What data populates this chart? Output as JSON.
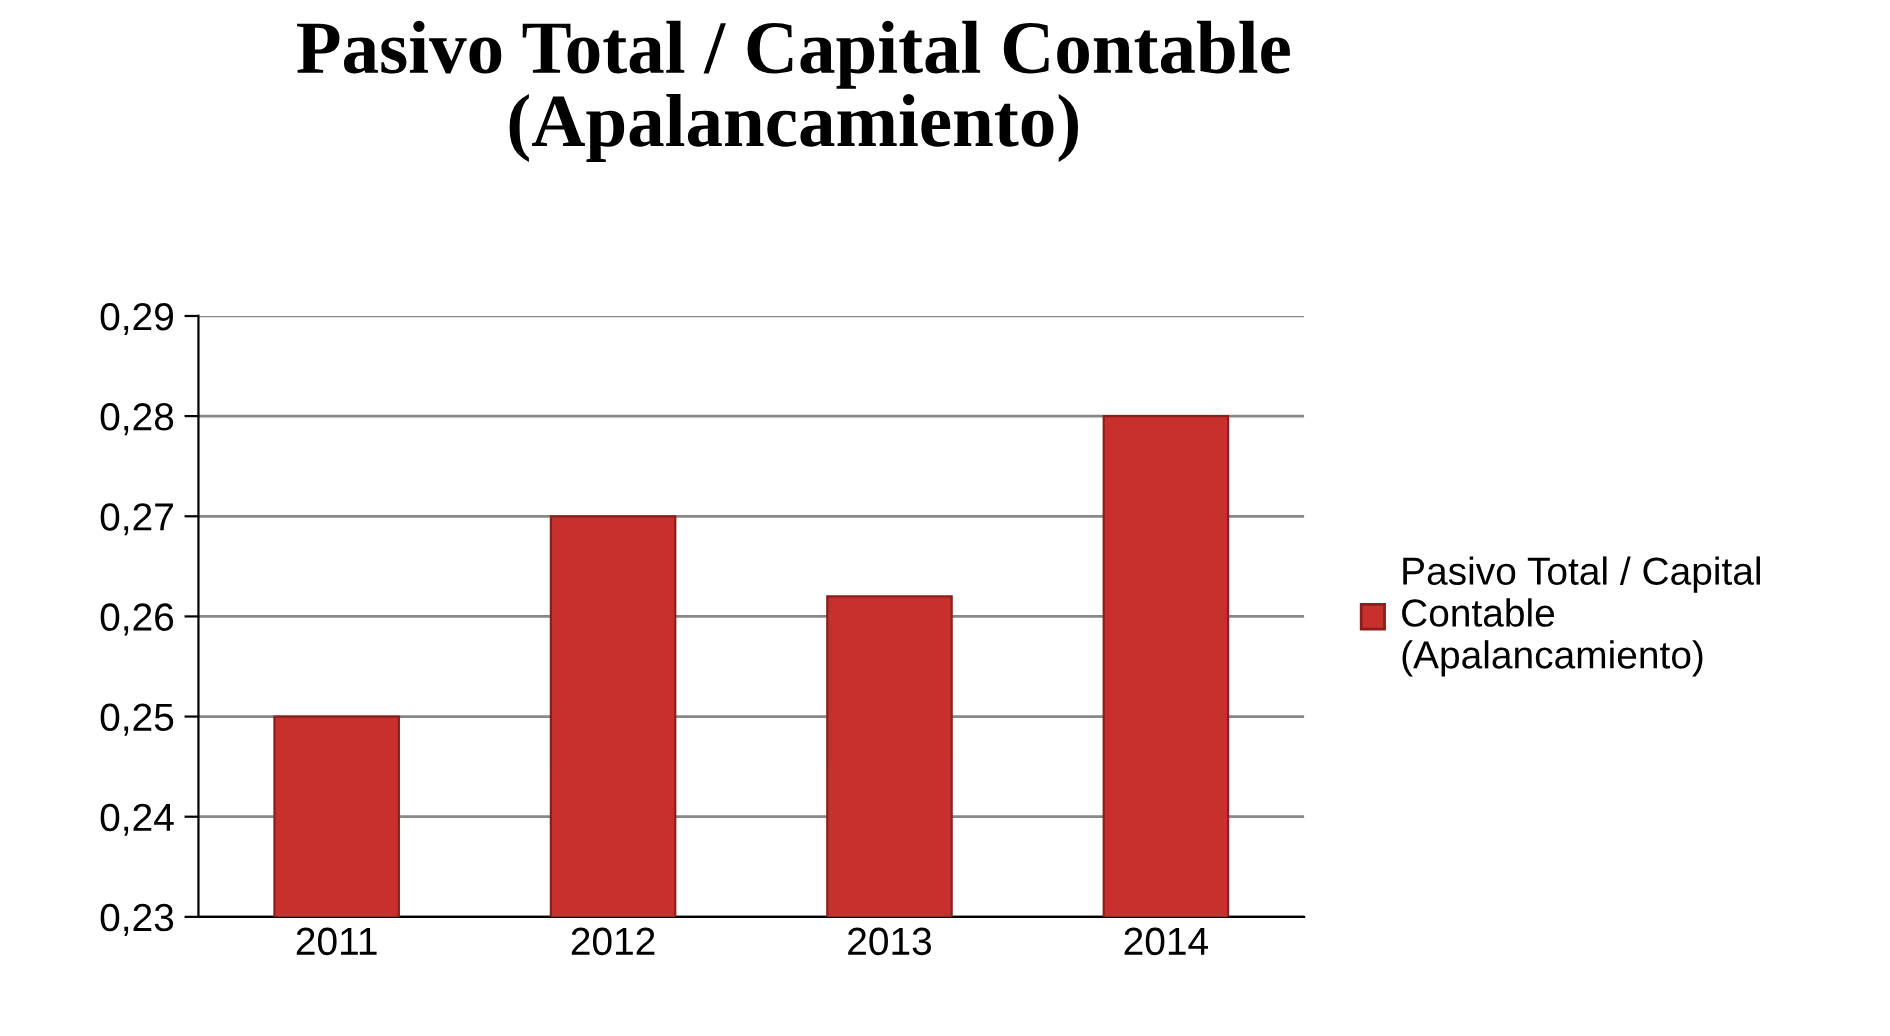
{
  "chart_data": {
    "type": "bar",
    "title": "Pasivo Total / Capital Contable\n(Apalancamiento)",
    "categories": [
      "2011",
      "2012",
      "2013",
      "2014"
    ],
    "series": [
      {
        "name": "Pasivo Total / Capital\nContable\n(Apalancamiento)",
        "color": "#c8302e",
        "values": [
          0.25,
          0.27,
          0.262,
          0.28
        ]
      }
    ],
    "ylim": [
      0.23,
      0.29
    ],
    "yticks": [
      {
        "value": 0.23,
        "label": "0,23"
      },
      {
        "value": 0.24,
        "label": "0,24"
      },
      {
        "value": 0.25,
        "label": "0,25"
      },
      {
        "value": 0.26,
        "label": "0,26"
      },
      {
        "value": 0.27,
        "label": "0,27"
      },
      {
        "value": 0.28,
        "label": "0,28"
      },
      {
        "value": 0.29,
        "label": "0,29"
      }
    ],
    "grid": "y",
    "legend": "right"
  }
}
